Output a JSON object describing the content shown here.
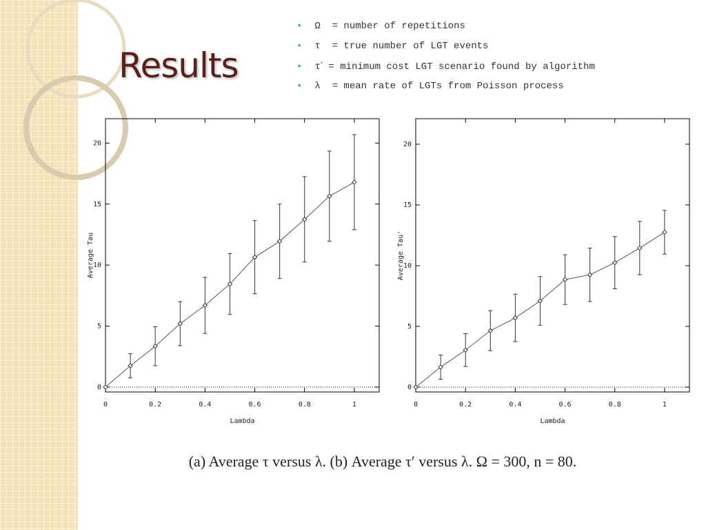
{
  "title": "Results",
  "bullets": [
    "Ω  = number of repetitions",
    "τ  = true number of LGT events",
    "τ‵ = minimum cost LGT scenario found by algorithm",
    "λ  = mean rate of LGTs from Poisson process"
  ],
  "caption": "(a) Average τ versus λ. (b) Average τ′ versus λ. Ω = 300, n = 80.",
  "chart_data": [
    {
      "type": "line",
      "x_label": "Lambda",
      "y_label": "Average Tau",
      "x": [
        0,
        0.1,
        0.2,
        0.3,
        0.4,
        0.5,
        0.6,
        0.7,
        0.8,
        0.9,
        1
      ],
      "series": [
        {
          "color": "#555555",
          "values": [
            0,
            1.75,
            3.35,
            5.2,
            6.7,
            8.45,
            10.65,
            11.95,
            13.75,
            15.65,
            16.8
          ],
          "errors": [
            0,
            1.0,
            1.6,
            1.8,
            2.3,
            2.5,
            3.0,
            3.05,
            3.5,
            3.7,
            3.9
          ]
        }
      ],
      "xlim": [
        0,
        1.1
      ],
      "ylim": [
        -0.4,
        22
      ],
      "xticks": [
        0,
        0.2,
        0.4,
        0.6,
        0.8,
        1
      ],
      "yticks": [
        0,
        5,
        10,
        15,
        20
      ]
    },
    {
      "type": "line",
      "x_label": "Lambda",
      "y_label": "Average Tau'",
      "x": [
        0,
        0.1,
        0.2,
        0.3,
        0.4,
        0.5,
        0.6,
        0.7,
        0.8,
        0.9,
        1
      ],
      "series": [
        {
          "color": "#555555",
          "values": [
            0,
            1.65,
            3.05,
            4.65,
            5.7,
            7.1,
            8.85,
            9.25,
            10.25,
            11.45,
            12.75
          ],
          "errors": [
            0,
            1.0,
            1.35,
            1.65,
            1.95,
            2.0,
            2.05,
            2.2,
            2.15,
            2.2,
            1.8
          ]
        }
      ],
      "xlim": [
        0,
        1.1
      ],
      "ylim": [
        -0.4,
        22.1
      ],
      "xticks": [
        0,
        0.2,
        0.4,
        0.6,
        0.8,
        1
      ],
      "yticks": [
        0,
        5,
        10,
        15,
        20
      ]
    }
  ]
}
